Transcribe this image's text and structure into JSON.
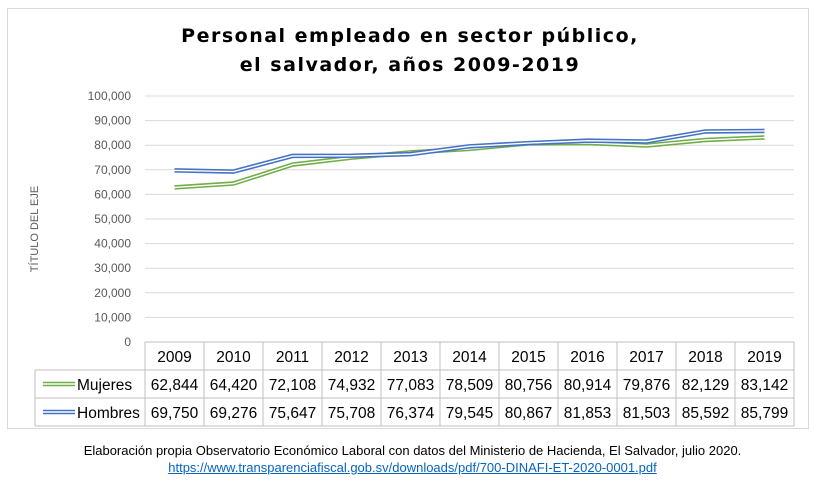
{
  "chart_data": {
    "type": "line",
    "title": [
      "Personal empleado en sector público,",
      "el salvador, años 2009-2019"
    ],
    "ylabel": "TÍTULO DEL EJE",
    "ylim": [
      0,
      100000
    ],
    "yticks": [
      "0",
      "10,000",
      "20,000",
      "30,000",
      "40,000",
      "50,000",
      "60,000",
      "70,000",
      "80,000",
      "90,000",
      "100,000"
    ],
    "grid": true,
    "legend": "data-table",
    "categories": [
      "2009",
      "2010",
      "2011",
      "2012",
      "2013",
      "2014",
      "2015",
      "2016",
      "2017",
      "2018",
      "2019"
    ],
    "series": [
      {
        "name": "Mujeres",
        "color": "#70ad47",
        "values": [
          62844,
          64420,
          72108,
          74932,
          77083,
          78509,
          80756,
          80914,
          79876,
          82129,
          83142
        ],
        "labels": [
          "62,844",
          "64,420",
          "72,108",
          "74,932",
          "77,083",
          "78,509",
          "80,756",
          "80,914",
          "79,876",
          "82,129",
          "83,142"
        ]
      },
      {
        "name": "Hombres",
        "color": "#4472c4",
        "values": [
          69750,
          69276,
          75647,
          75708,
          76374,
          79545,
          80867,
          81853,
          81503,
          85592,
          85799
        ],
        "labels": [
          "69,750",
          "69,276",
          "75,647",
          "75,708",
          "76,374",
          "79,545",
          "80,867",
          "81,853",
          "81,503",
          "85,592",
          "85,799"
        ]
      }
    ]
  },
  "footnote": {
    "text": "Elaboración propia Observatorio Económico Laboral con datos del Ministerio de Hacienda, El Salvador, julio 2020.",
    "link": "https://www.transparenciafiscal.gob.sv/downloads/pdf/700-DINAFI-ET-2020-0001.pdf"
  }
}
